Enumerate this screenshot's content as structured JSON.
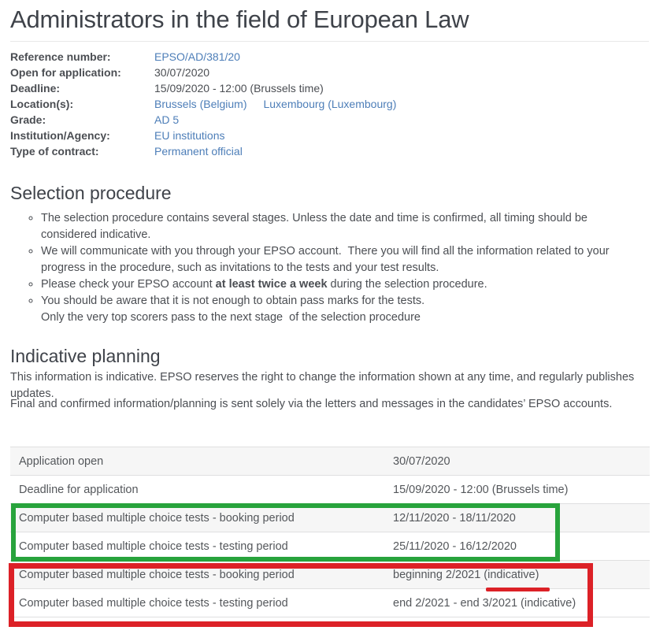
{
  "page": {
    "title": "Administrators in the field of European Law"
  },
  "meta": {
    "rows": [
      {
        "label": "Reference number:",
        "values": [
          {
            "text": "EPSO/AD/381/20",
            "link": true
          }
        ]
      },
      {
        "label": "Open for application:",
        "values": [
          {
            "text": "30/07/2020",
            "link": false
          }
        ]
      },
      {
        "label": "Deadline:",
        "values": [
          {
            "text": "15/09/2020 - 12:00 (Brussels time)",
            "link": false
          }
        ]
      },
      {
        "label": "Location(s):",
        "values": [
          {
            "text": "Brussels (Belgium)",
            "link": true
          },
          {
            "text": "Luxembourg (Luxembourg)",
            "link": true
          }
        ]
      },
      {
        "label": "Grade:",
        "values": [
          {
            "text": "AD 5",
            "link": true
          }
        ]
      },
      {
        "label": "Institution/Agency:",
        "values": [
          {
            "text": "EU institutions",
            "link": true
          }
        ]
      },
      {
        "label": "Type of contract:",
        "values": [
          {
            "text": "Permanent official",
            "link": true
          }
        ]
      }
    ]
  },
  "selection": {
    "heading": "Selection procedure",
    "bullet1": "The selection procedure contains several stages. Unless the date and time is confirmed, all timing should be considered indicative.",
    "bullet2": "We will communicate with you through your EPSO account.  There you will find all the information related to your progress in the procedure, such as invitations to the tests and your test results.",
    "bullet3_pre": "Please check your EPSO account ",
    "bullet3_bold": "at least twice a week",
    "bullet3_post": " during the selection procedure.",
    "bullet4_line1": "You should be aware that it is not enough to obtain pass marks for the tests.",
    "bullet4_line2": "Only the very top scorers pass to the next stage  of the selection procedure"
  },
  "planning": {
    "heading": "Indicative planning",
    "paragraph1": "This information is indicative. EPSO reserves the right to change the information shown at any time, and regularly publishes updates.",
    "paragraph2": "Final and confirmed information/planning is sent solely via the letters and messages in the candidates’ EPSO accounts."
  },
  "planning_table": {
    "rows": [
      {
        "label": "Application open",
        "value": "30/07/2020"
      },
      {
        "label": "Deadline for application",
        "value": "15/09/2020 - 12:00 (Brussels time)"
      },
      {
        "label": "Computer based multiple choice tests - booking period",
        "value": "12/11/2020 - 18/11/2020"
      },
      {
        "label": "Computer based multiple choice tests - testing period",
        "value": "25/11/2020 - 16/12/2020"
      },
      {
        "label": "Computer based multiple choice tests - booking period",
        "value": "beginning 2/2021 (indicative)"
      },
      {
        "label": "Computer based multiple choice tests - testing period",
        "value": "end 2/2021 - end 3/2021 (indicative)"
      }
    ]
  },
  "annotations": {
    "green_box": "highlight around confirmed computer-based test rows",
    "red_box": "highlight around indicative computer-based test rows",
    "red_underline": "underline below (indicative) in booking period row",
    "green_color": "#28a33c",
    "red_color": "#dc2127"
  },
  "colors": {
    "link": "#4d7eb8",
    "heading_text": "#3f434a",
    "body_text": "#4b4e53",
    "table_stripe": "#f6f6f6",
    "table_border": "#dfdfe0"
  }
}
